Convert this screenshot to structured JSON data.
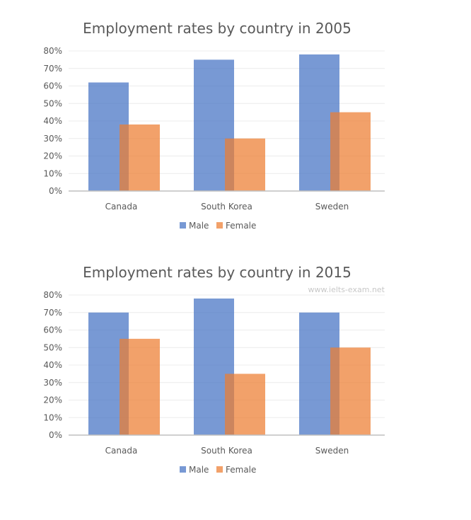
{
  "watermark": "www.ielts-exam.net",
  "colors": {
    "male": "#4472c4",
    "female": "#ed7d31"
  },
  "chart_data": [
    {
      "type": "bar",
      "title": "Employment rates by country in 2005",
      "categories": [
        "Canada",
        "South Korea",
        "Sweden"
      ],
      "series": [
        {
          "name": "Male",
          "values": [
            62,
            75,
            78
          ]
        },
        {
          "name": "Female",
          "values": [
            38,
            30,
            45
          ]
        }
      ],
      "ylim": [
        0,
        80
      ],
      "yticks": [
        "0%",
        "10%",
        "20%",
        "30%",
        "40%",
        "50%",
        "60%",
        "70%",
        "80%"
      ],
      "grid": true,
      "legend": "bottom"
    },
    {
      "type": "bar",
      "title": "Employment rates by country in 2015",
      "categories": [
        "Canada",
        "South Korea",
        "Sweden"
      ],
      "series": [
        {
          "name": "Male",
          "values": [
            70,
            78,
            70
          ]
        },
        {
          "name": "Female",
          "values": [
            55,
            35,
            50
          ]
        }
      ],
      "ylim": [
        0,
        80
      ],
      "yticks": [
        "0%",
        "10%",
        "20%",
        "30%",
        "40%",
        "50%",
        "60%",
        "70%",
        "80%"
      ],
      "grid": true,
      "legend": "bottom"
    }
  ]
}
